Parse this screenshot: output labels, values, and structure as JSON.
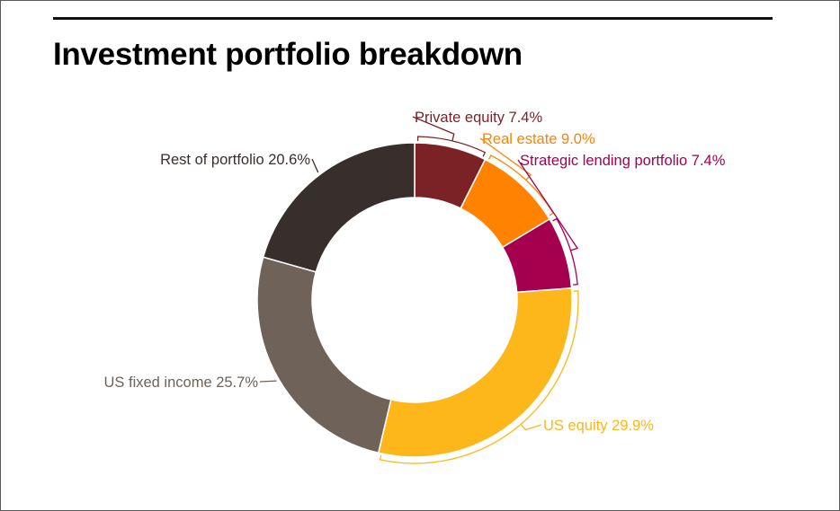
{
  "title": "Investment portfolio breakdown",
  "chart_data": {
    "type": "pie",
    "variant": "donut",
    "title": "Investment portfolio breakdown",
    "unit": "%",
    "slices": [
      {
        "label": "Private equity",
        "value": 7.4,
        "display": "Private equity 7.4%",
        "color": "#7b2227"
      },
      {
        "label": "Real estate",
        "value": 9.0,
        "display": "Real estate 9.0%",
        "color": "#ff8200"
      },
      {
        "label": "Strategic lending portfolio",
        "value": 7.4,
        "display": "Strategic lending portfolio 7.4%",
        "color": "#a50050"
      },
      {
        "label": "US equity",
        "value": 29.9,
        "display": "US equity 29.9%",
        "color": "#fdb71a"
      },
      {
        "label": "US fixed income",
        "value": 25.7,
        "display": "US fixed income 25.7%",
        "color": "#6e6259"
      },
      {
        "label": "Rest of portfolio",
        "value": 20.6,
        "display": "Rest of portfolio 20.6%",
        "color": "#382f2d"
      }
    ]
  },
  "colors": {
    "background": "#ffffff",
    "title": "#000000",
    "rule": "#111111",
    "border": "#5a5a5a"
  }
}
